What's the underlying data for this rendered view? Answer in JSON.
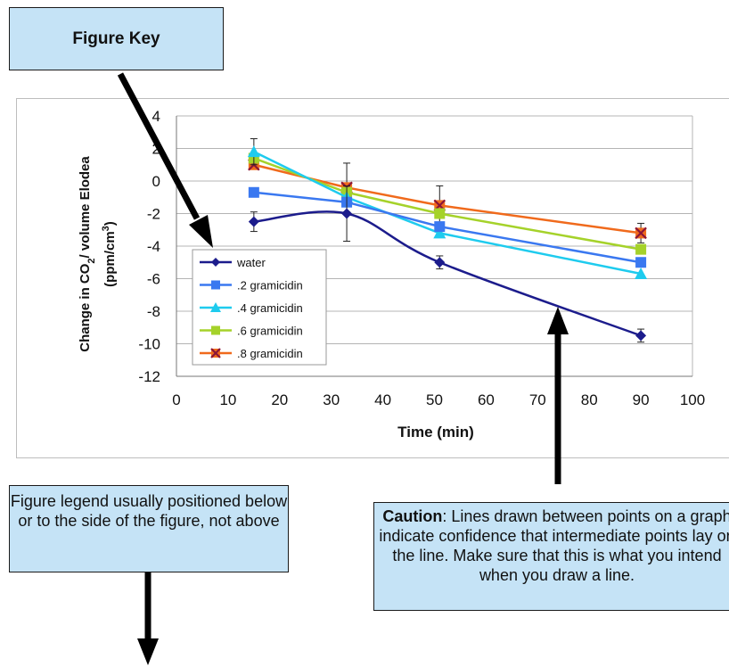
{
  "figure_key": {
    "label": "Figure Key"
  },
  "legend_note": {
    "text": "Figure legend usually positioned below or to the side of the figure, not above"
  },
  "caution": {
    "bold": "Caution",
    "text": ": Lines drawn between points on a graph indicate confidence that intermediate points lay on the line. Make sure that this is what you intend when you draw a line."
  },
  "chart_data": {
    "type": "line",
    "xlabel": "Time (min)",
    "ylabel": "Change in CO2/ volume Elodea (ppm/cm3)",
    "xlim": [
      0,
      100
    ],
    "ylim": [
      -12,
      4
    ],
    "x_ticks": [
      0,
      10,
      20,
      30,
      40,
      50,
      60,
      70,
      80,
      90,
      100
    ],
    "y_ticks": [
      4,
      2,
      0,
      -2,
      -4,
      -6,
      -8,
      -10,
      -12
    ],
    "grid": "horizontal",
    "legend_placement": "left",
    "series": [
      {
        "name": "water",
        "x": [
          15,
          33,
          51,
          90
        ],
        "y": [
          -2.5,
          -2.0,
          -5.0,
          -9.5
        ],
        "err": [
          0.6,
          1.7,
          0.4,
          0.4
        ],
        "color": "#1c1c8c",
        "marker": "diamond",
        "smooth": true
      },
      {
        "name": ".2 gramicidin",
        "x": [
          15,
          33,
          51,
          90
        ],
        "y": [
          -0.7,
          -1.3,
          -2.8,
          -5.0
        ],
        "err": [
          0,
          0,
          0,
          0
        ],
        "color": "#3a78f0",
        "marker": "square",
        "smooth": false
      },
      {
        "name": ".4 gramicidin",
        "x": [
          15,
          33,
          51,
          90
        ],
        "y": [
          1.8,
          -1.0,
          -3.2,
          -5.7
        ],
        "err": [
          0.8,
          0,
          0,
          0
        ],
        "color": "#1ecbee",
        "marker": "triangle",
        "smooth": false
      },
      {
        "name": ".6 gramicidin",
        "x": [
          15,
          33,
          51,
          90
        ],
        "y": [
          1.4,
          -0.7,
          -2.0,
          -4.2
        ],
        "err": [
          0,
          0,
          0,
          0
        ],
        "color": "#a5d22a",
        "marker": "square",
        "smooth": false
      },
      {
        "name": ".8 gramicidin",
        "x": [
          15,
          33,
          51,
          90
        ],
        "y": [
          1.0,
          -0.4,
          -1.5,
          -3.2
        ],
        "err": [
          0,
          1.5,
          1.2,
          0.6
        ],
        "color": "#f06a1c",
        "marker": "x",
        "smooth": false
      }
    ]
  }
}
